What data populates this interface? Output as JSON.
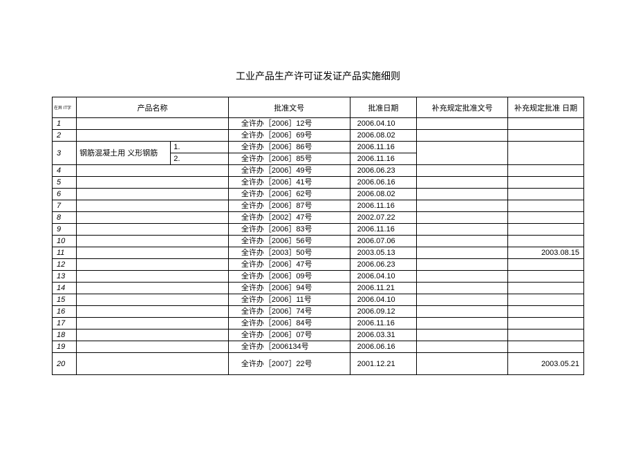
{
  "title": "工业产品生产许可证发证产品实施细则",
  "headers": {
    "seq": "在异 IT字",
    "name": "产品名称",
    "doc": "批准文号",
    "date": "批准日期",
    "supp": "补充规定批准文号",
    "suppdate": "补充规定批准 日期"
  },
  "row3": {
    "seq": "3",
    "name_left": "钢筋混凝土用 义形钢筋",
    "name_r1": "1.",
    "name_r2": "2.",
    "doc_1": "全许办［2006］86号",
    "date_1": "2006.11.16",
    "doc_2": "全许办［2006］85号",
    "date_2": "2006.11.16"
  },
  "rows": [
    {
      "seq": "1",
      "name": "",
      "doc": "全许办［2006］12号",
      "date": "2006.04.10",
      "supp": "",
      "suppdate": ""
    },
    {
      "seq": "2",
      "name": "",
      "doc": "全许办［2006］69号",
      "date": "2006.08.02",
      "supp": "",
      "suppdate": ""
    },
    {
      "seq": "4",
      "name": "",
      "doc": "全许办［2006］49号",
      "date": "2006.06.23",
      "supp": "",
      "suppdate": ""
    },
    {
      "seq": "5",
      "name": "",
      "doc": "全许办［2006］41号",
      "date": "2006.06.16",
      "supp": "",
      "suppdate": ""
    },
    {
      "seq": "6",
      "name": "",
      "doc": "全许办［2006］62号",
      "date": "2006.08.02",
      "supp": "",
      "suppdate": ""
    },
    {
      "seq": "7",
      "name": "",
      "doc": "全许办［2006］87号",
      "date": "2006.11.16",
      "supp": "",
      "suppdate": ""
    },
    {
      "seq": "8",
      "name": "",
      "doc": "全许办［2002］47号",
      "date": "2002.07.22",
      "supp": "",
      "suppdate": ""
    },
    {
      "seq": "9",
      "name": "",
      "doc": "全许办［2006］83号",
      "date": "2006.11.16",
      "supp": "",
      "suppdate": ""
    },
    {
      "seq": "10",
      "name": "",
      "doc": "全许办［2006］56号",
      "date": "2006.07.06",
      "supp": "",
      "suppdate": ""
    },
    {
      "seq": "11",
      "name": "",
      "doc": "全许办［2003］50号",
      "date": "2003.05.13",
      "supp": "",
      "suppdate": "2003.08.15"
    },
    {
      "seq": "12",
      "name": "",
      "doc": "全许办［2006］47号",
      "date": "2006.06.23",
      "supp": "",
      "suppdate": ""
    },
    {
      "seq": "13",
      "name": "",
      "doc": "全许办［2006］09号",
      "date": "2006.04.10",
      "supp": "",
      "suppdate": ""
    },
    {
      "seq": "14",
      "name": "",
      "doc": "全许办［2006］94号",
      "date": "2006.11.21",
      "supp": "",
      "suppdate": ""
    },
    {
      "seq": "15",
      "name": "",
      "doc": "全许办［2006］11号",
      "date": "2006.04.10",
      "supp": "",
      "suppdate": ""
    },
    {
      "seq": "16",
      "name": "",
      "doc": "全许办［2006］74号",
      "date": "2006.09.12",
      "supp": "",
      "suppdate": ""
    },
    {
      "seq": "17",
      "name": "",
      "doc": "全许办［2006］84号",
      "date": "2006.11.16",
      "supp": "",
      "suppdate": ""
    },
    {
      "seq": "18",
      "name": "",
      "doc": "全许办［2006］07号",
      "date": "2006.03.31",
      "supp": "",
      "suppdate": ""
    },
    {
      "seq": "19",
      "name": "",
      "doc": "全许办［2006134号",
      "date": "2006.06.16",
      "supp": "",
      "suppdate": ""
    }
  ],
  "row20": {
    "seq": "20",
    "name": "",
    "doc": "全许办［2007］22号",
    "date": "2001.12.21",
    "supp": "",
    "suppdate": "2003.05.21"
  }
}
